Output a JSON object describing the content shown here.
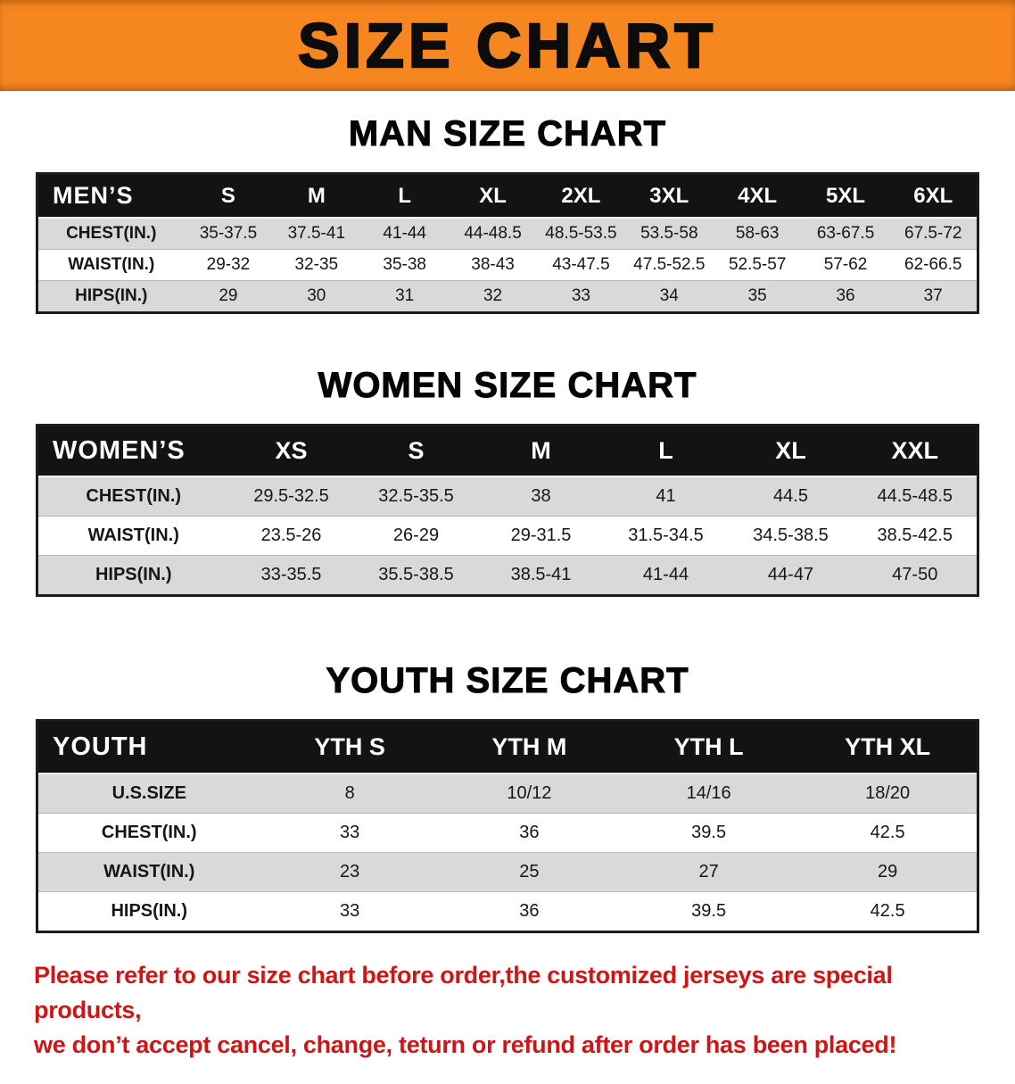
{
  "banner": {
    "title": "SIZE CHART"
  },
  "sections": [
    {
      "heading": "MAN SIZE CHART",
      "table": {
        "header": [
          "MEN’S",
          "S",
          "M",
          "L",
          "XL",
          "2XL",
          "3XL",
          "4XL",
          "5XL",
          "6XL"
        ],
        "rows": [
          [
            "CHEST(IN.)",
            "35-37.5",
            "37.5-41",
            "41-44",
            "44-48.5",
            "48.5-53.5",
            "53.5-58",
            "58-63",
            "63-67.5",
            "67.5-72"
          ],
          [
            "WAIST(IN.)",
            "29-32",
            "32-35",
            "35-38",
            "38-43",
            "43-47.5",
            "47.5-52.5",
            "52.5-57",
            "57-62",
            "62-66.5"
          ],
          [
            "HIPS(IN.)",
            "29",
            "30",
            "31",
            "32",
            "33",
            "34",
            "35",
            "36",
            "37"
          ]
        ]
      }
    },
    {
      "heading": "WOMEN SIZE CHART",
      "table": {
        "header": [
          "WOMEN’S",
          "XS",
          "S",
          "M",
          "L",
          "XL",
          "XXL"
        ],
        "rows": [
          [
            "CHEST(IN.)",
            "29.5-32.5",
            "32.5-35.5",
            "38",
            "41",
            "44.5",
            "44.5-48.5"
          ],
          [
            "WAIST(IN.)",
            "23.5-26",
            "26-29",
            "29-31.5",
            "31.5-34.5",
            "34.5-38.5",
            "38.5-42.5"
          ],
          [
            "HIPS(IN.)",
            "33-35.5",
            "35.5-38.5",
            "38.5-41",
            "41-44",
            "44-47",
            "47-50"
          ]
        ]
      }
    },
    {
      "heading": "YOUTH SIZE CHART",
      "table": {
        "header": [
          "YOUTH",
          "YTH S",
          "YTH M",
          "YTH L",
          "YTH XL"
        ],
        "rows": [
          [
            "U.S.SIZE",
            "8",
            "10/12",
            "14/16",
            "18/20"
          ],
          [
            "CHEST(IN.)",
            "33",
            "36",
            "39.5",
            "42.5"
          ],
          [
            "WAIST(IN.)",
            "23",
            "25",
            "27",
            "29"
          ],
          [
            "HIPS(IN.)",
            "33",
            "36",
            "39.5",
            "42.5"
          ]
        ]
      }
    }
  ],
  "footer": {
    "line1": "Please refer to our size chart before order,the customized jerseys are special products,",
    "line2": "we don’t accept cancel, change, teturn or refund after order has been placed!"
  },
  "colors": {
    "banner_bg": "#f6861f",
    "table_header_bg": "#131313",
    "row_alt": "#d9d9d9",
    "notice_text": "#cf1616"
  }
}
